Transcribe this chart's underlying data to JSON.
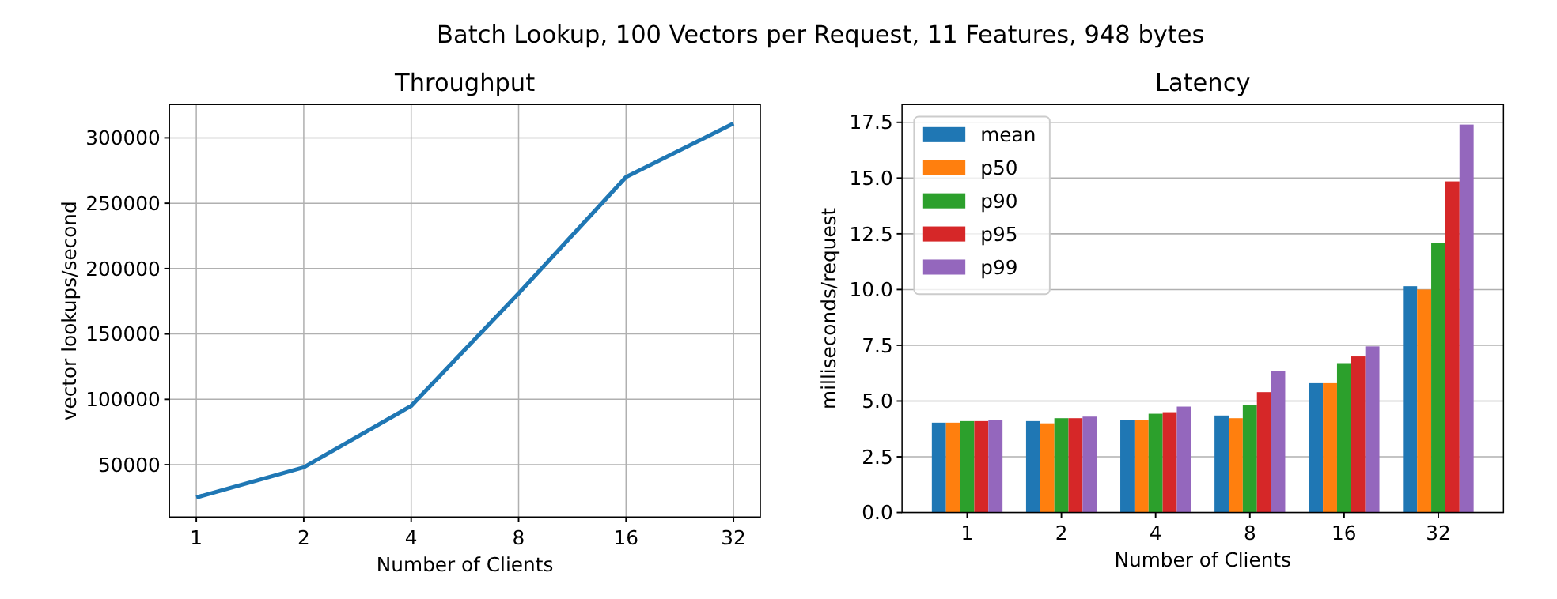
{
  "chart_data": [
    {
      "type": "line",
      "title": "Throughput",
      "annotations": [
        "Batch Lookup, 100 Vectors per Request, 11 Features, 948 bytes"
      ],
      "xlabel": "Number of Clients",
      "ylabel": "vector lookups/second",
      "categories": [
        "1",
        "2",
        "4",
        "8",
        "16",
        "32"
      ],
      "series": [
        {
          "color": "#1f77b4",
          "values": [
            25000,
            48000,
            95000,
            181000,
            270000,
            311000
          ]
        }
      ],
      "ylim": [
        10000,
        325500
      ],
      "yticks": [
        50000,
        100000,
        150000,
        200000,
        250000,
        300000
      ],
      "grid": true,
      "line_style": "solid",
      "marker": "none"
    },
    {
      "type": "bar",
      "title": "Latency",
      "xlabel": "Number of Clients",
      "ylabel": "milliseconds/request",
      "categories": [
        "1",
        "2",
        "4",
        "8",
        "16",
        "32"
      ],
      "series": [
        {
          "name": "mean",
          "color": "#1f77b4",
          "values": [
            4.03,
            4.1,
            4.15,
            4.35,
            5.8,
            10.15
          ]
        },
        {
          "name": "p50",
          "color": "#ff7f0e",
          "values": [
            4.03,
            4.0,
            4.15,
            4.23,
            5.8,
            10.0
          ]
        },
        {
          "name": "p90",
          "color": "#2ca02c",
          "values": [
            4.1,
            4.23,
            4.43,
            4.82,
            6.7,
            12.1
          ]
        },
        {
          "name": "p95",
          "color": "#d62728",
          "values": [
            4.1,
            4.23,
            4.5,
            5.4,
            7.0,
            14.85
          ]
        },
        {
          "name": "p99",
          "color": "#9467bd",
          "values": [
            4.16,
            4.3,
            4.75,
            6.35,
            7.45,
            17.4
          ]
        }
      ],
      "ylim": [
        0,
        18.3
      ],
      "yticks": [
        {
          "value": 0,
          "label": "0.0"
        },
        {
          "value": 2.5,
          "label": "2.5"
        },
        {
          "value": 5,
          "label": "5.0"
        },
        {
          "value": 7.5,
          "label": "7.5"
        },
        {
          "value": 10,
          "label": "10.0"
        },
        {
          "value": 12.5,
          "label": "12.5"
        },
        {
          "value": 15,
          "label": "15.0"
        },
        {
          "value": 17.5,
          "label": "17.5"
        }
      ],
      "grid": "y",
      "legend": "top left"
    }
  ]
}
